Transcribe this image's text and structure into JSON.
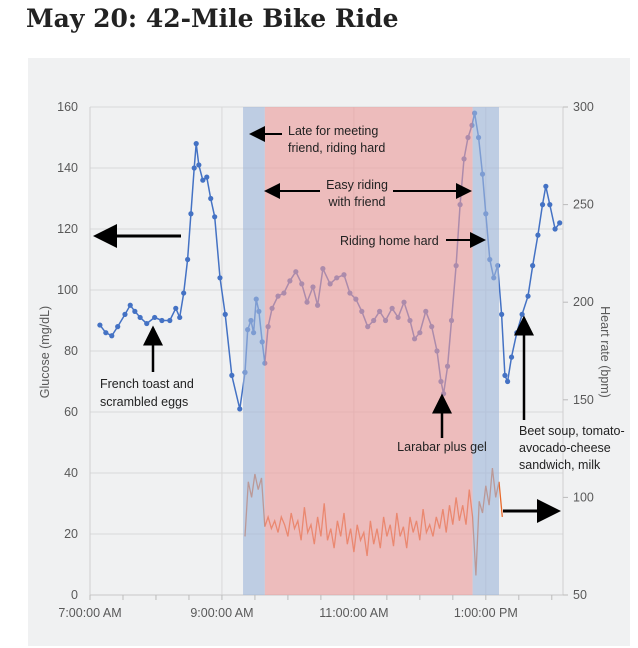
{
  "title": "May 20: 42-Mile Bike Ride",
  "chart_data": {
    "type": "line",
    "title": "May 20: 42-Mile Bike Ride",
    "xlabel": "",
    "ylabel": "Glucose (mg/dL)",
    "y2label": "Heart rate (bpm)",
    "xlim_hours": [
      7,
      14.17
    ],
    "x_ticks": [
      {
        "t": 7,
        "label": "7:00:00 AM"
      },
      {
        "t": 9,
        "label": "9:00:00 AM"
      },
      {
        "t": 11,
        "label": "11:00:00 AM"
      },
      {
        "t": 13,
        "label": "1:00:00 PM"
      }
    ],
    "ylim": [
      0,
      160
    ],
    "y_ticks": [
      "0",
      "20",
      "40",
      "60",
      "80",
      "100",
      "120",
      "140",
      "160"
    ],
    "y2lim": [
      50,
      300
    ],
    "y2_ticks": [
      "50",
      "100",
      "150",
      "200",
      "250",
      "300"
    ],
    "grid": true,
    "colors": {
      "glucose": "#4472c4",
      "heart_rate": "#e8692a",
      "hard_band": "#9fb6da",
      "easy_band": "#eb9b9b",
      "background": "#f0f1f2"
    },
    "bands": [
      {
        "name": "riding-hard-out",
        "start": 9.32,
        "end": 9.65,
        "color": "hard_band"
      },
      {
        "name": "easy-riding",
        "start": 9.65,
        "end": 12.8,
        "color": "easy_band"
      },
      {
        "name": "riding-home-hard",
        "start": 12.8,
        "end": 13.2,
        "color": "hard_band"
      }
    ],
    "series": [
      {
        "name": "Glucose",
        "axis": "left",
        "t": [
          7.15,
          7.24,
          7.33,
          7.42,
          7.53,
          7.61,
          7.68,
          7.76,
          7.86,
          7.98,
          8.09,
          8.21,
          8.3,
          8.36,
          8.42,
          8.48,
          8.53,
          8.58,
          8.61,
          8.65,
          8.71,
          8.77,
          8.83,
          8.89,
          8.97,
          9.05,
          9.15,
          9.27,
          9.35,
          9.39,
          9.44,
          9.48,
          9.52,
          9.56,
          9.61,
          9.65,
          9.7,
          9.76,
          9.85,
          9.94,
          10.03,
          10.12,
          10.21,
          10.29,
          10.38,
          10.45,
          10.53,
          10.64,
          10.74,
          10.85,
          10.94,
          11.03,
          11.12,
          11.21,
          11.3,
          11.39,
          11.48,
          11.58,
          11.67,
          11.76,
          11.85,
          11.92,
          12.0,
          12.09,
          12.18,
          12.26,
          12.32,
          12.36,
          12.42,
          12.48,
          12.55,
          12.61,
          12.67,
          12.73,
          12.79,
          12.83,
          12.89,
          12.95,
          13.0,
          13.06,
          13.12,
          13.18,
          13.24,
          13.29,
          13.33,
          13.39,
          13.47,
          13.55,
          13.64,
          13.71,
          13.79,
          13.86,
          13.91,
          13.97,
          14.05,
          14.12
        ],
        "values": [
          88.5,
          86,
          85,
          88,
          92,
          95,
          93,
          91,
          89,
          91,
          90,
          90,
          94,
          91,
          99,
          110,
          125,
          140,
          148,
          141,
          136,
          137,
          130,
          124,
          104,
          92,
          72,
          61,
          73,
          87,
          90,
          86,
          97,
          93,
          83,
          76,
          88,
          94,
          98,
          99,
          103,
          106,
          102,
          96,
          101,
          95,
          107,
          102,
          104,
          105,
          99,
          97,
          93,
          88,
          90,
          93,
          90,
          94,
          91,
          96,
          90,
          84,
          86,
          93,
          88,
          80,
          70,
          66,
          75,
          90,
          108,
          128,
          143,
          150,
          154,
          158,
          150,
          138,
          125,
          110,
          104,
          108,
          92,
          72,
          70,
          78,
          86,
          92,
          98,
          108,
          118,
          128,
          134,
          128,
          120,
          122
        ]
      },
      {
        "name": "Heart rate",
        "axis": "right",
        "t_start": 9.35,
        "t_step": 0.05,
        "values": [
          80,
          108,
          100,
          112,
          104,
          110,
          85,
          90,
          84,
          88,
          82,
          90,
          86,
          80,
          92,
          84,
          88,
          78,
          95,
          82,
          86,
          76,
          90,
          80,
          97,
          78,
          84,
          74,
          88,
          80,
          92,
          76,
          84,
          72,
          86,
          78,
          82,
          70,
          88,
          76,
          84,
          74,
          90,
          80,
          86,
          75,
          92,
          80,
          85,
          74,
          90,
          82,
          88,
          78,
          94,
          82,
          86,
          80,
          90,
          84,
          94,
          82,
          96,
          86,
          100,
          88,
          96,
          86,
          104,
          90,
          60,
          98,
          92,
          106,
          96,
          115,
          100,
          108,
          90
        ]
      }
    ],
    "annotations": {
      "late": [
        "Late for meeting",
        "friend, riding hard"
      ],
      "easy": [
        "Easy riding",
        "with friend"
      ],
      "home": "Riding home hard",
      "breakfast": [
        "French toast and",
        "scrambled eggs"
      ],
      "larabar": "Larabar plus gel",
      "lunch": [
        "Beet soup, tomato-",
        "avocado-cheese",
        "sandwich, milk"
      ]
    }
  }
}
